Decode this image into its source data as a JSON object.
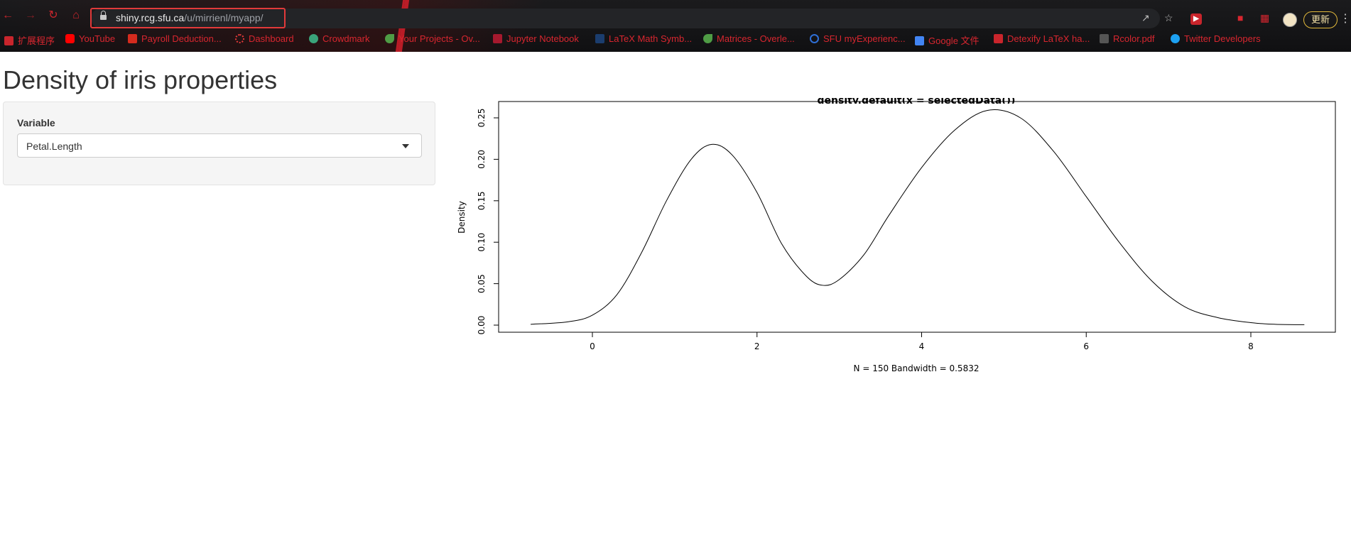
{
  "browser": {
    "url_host": "shiny.rcg.sfu.ca",
    "url_path": "/u/mirrienl/myapp/",
    "update_label": "更新",
    "bookmarks": [
      {
        "label": "扩展程序",
        "icon": "extensions-icon",
        "color": "#c9252c"
      },
      {
        "label": "YouTube",
        "icon": "youtube-icon",
        "color": "#ff0000"
      },
      {
        "label": "Payroll Deduction...",
        "icon": "maple-leaf-icon",
        "color": "#d52b1e"
      },
      {
        "label": "Dashboard",
        "icon": "dashboard-icon",
        "color": "#e23a3a"
      },
      {
        "label": "Crowdmark",
        "icon": "crowdmark-icon",
        "color": "#3aa37a"
      },
      {
        "label": "Your Projects - Ov...",
        "icon": "overleaf-icon",
        "color": "#4f9c45"
      },
      {
        "label": "Jupyter Notebook",
        "icon": "sfu-icon",
        "color": "#a6192e"
      },
      {
        "label": "LaTeX Math Symb...",
        "icon": "uci-icon",
        "color": "#1b3d6e"
      },
      {
        "label": "Matrices - Overle...",
        "icon": "overleaf-icon",
        "color": "#4f9c45"
      },
      {
        "label": "SFU myExperienc...",
        "icon": "sfu-loop-icon",
        "color": "#2f6fd6"
      },
      {
        "label": "Google 文件",
        "icon": "google-docs-icon",
        "color": "#4285f4"
      },
      {
        "label": "Detexify LaTeX ha...",
        "icon": "detexify-icon",
        "color": "#c9252c"
      },
      {
        "label": "Rcolor.pdf",
        "icon": "pdf-icon",
        "color": "#555555"
      },
      {
        "label": "Twitter Developers",
        "icon": "twitter-icon",
        "color": "#1da1f2"
      }
    ]
  },
  "app": {
    "title": "Density of iris properties",
    "variable_label": "Variable",
    "variable_selected": "Petal.Length"
  },
  "chart_data": {
    "type": "line",
    "title": "density.default(x = selectedData())",
    "xlabel": "N = 150   Bandwidth = 0.5832",
    "ylabel": "Density",
    "xlim": [
      -0.75,
      8.65
    ],
    "ylim": [
      0,
      0.26
    ],
    "xticks": [
      "0",
      "2",
      "4",
      "6",
      "8"
    ],
    "yticks": [
      "0.00",
      "0.05",
      "0.10",
      "0.15",
      "0.20",
      "0.25"
    ],
    "grid": false,
    "series": [
      {
        "x": [
          -0.75,
          -0.3,
          0,
          0.3,
          0.6,
          0.9,
          1.2,
          1.45,
          1.7,
          2.0,
          2.3,
          2.6,
          2.8,
          3.0,
          3.3,
          3.6,
          4.0,
          4.4,
          4.8,
          5.2,
          5.6,
          6.0,
          6.4,
          6.8,
          7.2,
          7.6,
          8.0,
          8.3,
          8.65
        ],
        "y": [
          0.001,
          0.004,
          0.012,
          0.037,
          0.088,
          0.15,
          0.2,
          0.218,
          0.205,
          0.16,
          0.098,
          0.059,
          0.048,
          0.055,
          0.085,
          0.132,
          0.19,
          0.235,
          0.259,
          0.25,
          0.21,
          0.155,
          0.1,
          0.053,
          0.022,
          0.009,
          0.003,
          0.001,
          0.0005
        ]
      }
    ]
  }
}
